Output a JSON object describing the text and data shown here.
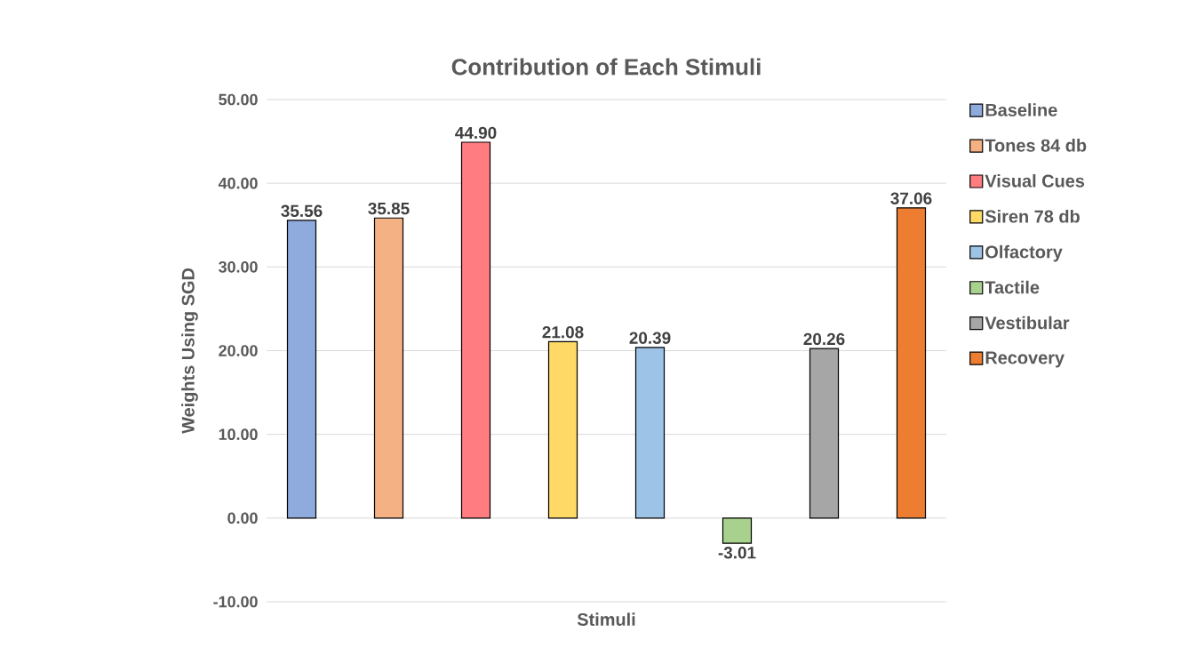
{
  "chart_data": {
    "type": "bar",
    "title": "Contribution of Each Stimuli",
    "xlabel": "Stimuli",
    "ylabel": "Weights Using SGD",
    "categories": [
      null
    ],
    "series": [
      {
        "name": "Baseline",
        "color": "#8faadc",
        "values": [
          35.56
        ],
        "value_labels": [
          "35.56"
        ]
      },
      {
        "name": "Tones 84 db",
        "color": "#f4b183",
        "values": [
          35.85
        ],
        "value_labels": [
          "35.85"
        ]
      },
      {
        "name": "Visual Cues",
        "color": "#ff7c80",
        "values": [
          44.9
        ],
        "value_labels": [
          "44.90"
        ]
      },
      {
        "name": "Siren 78 db",
        "color": "#ffd966",
        "values": [
          21.08
        ],
        "value_labels": [
          "21.08"
        ]
      },
      {
        "name": "Olfactory",
        "color": "#9dc3e6",
        "values": [
          20.39
        ],
        "value_labels": [
          "20.39"
        ]
      },
      {
        "name": "Tactile",
        "color": "#a9d18e",
        "values": [
          -3.01
        ],
        "value_labels": [
          "-3.01"
        ]
      },
      {
        "name": "Vestibular",
        "color": "#a6a6a6",
        "values": [
          20.26
        ],
        "value_labels": [
          "20.26"
        ]
      },
      {
        "name": "Recovery",
        "color": "#ed7d31",
        "values": [
          37.06
        ],
        "value_labels": [
          "37.06"
        ]
      }
    ],
    "ylim": [
      -10,
      50
    ],
    "yticks": [
      {
        "value": -10,
        "label": "-10.00"
      },
      {
        "value": 0,
        "label": "0.00"
      },
      {
        "value": 10,
        "label": "10.00"
      },
      {
        "value": 20,
        "label": "20.00"
      },
      {
        "value": 30,
        "label": "30.00"
      },
      {
        "value": 40,
        "label": "40.00"
      },
      {
        "value": 50,
        "label": "50.00"
      }
    ],
    "grid": "y",
    "legend": "right"
  }
}
